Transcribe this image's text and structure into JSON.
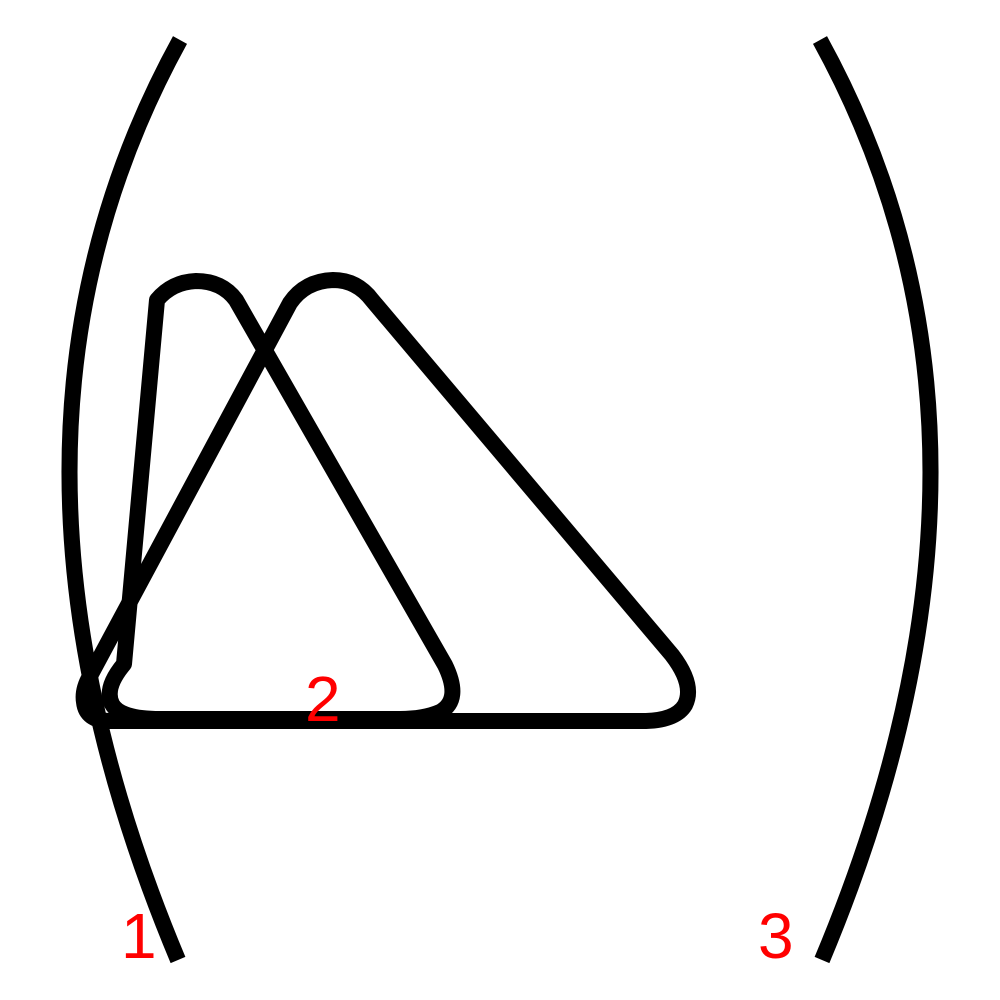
{
  "colors": {
    "stroke": "#000000",
    "label": "#ff0000",
    "background": "#ffffff"
  },
  "labels": {
    "left_paren": "1",
    "shapes": "2",
    "right_paren": "3"
  }
}
